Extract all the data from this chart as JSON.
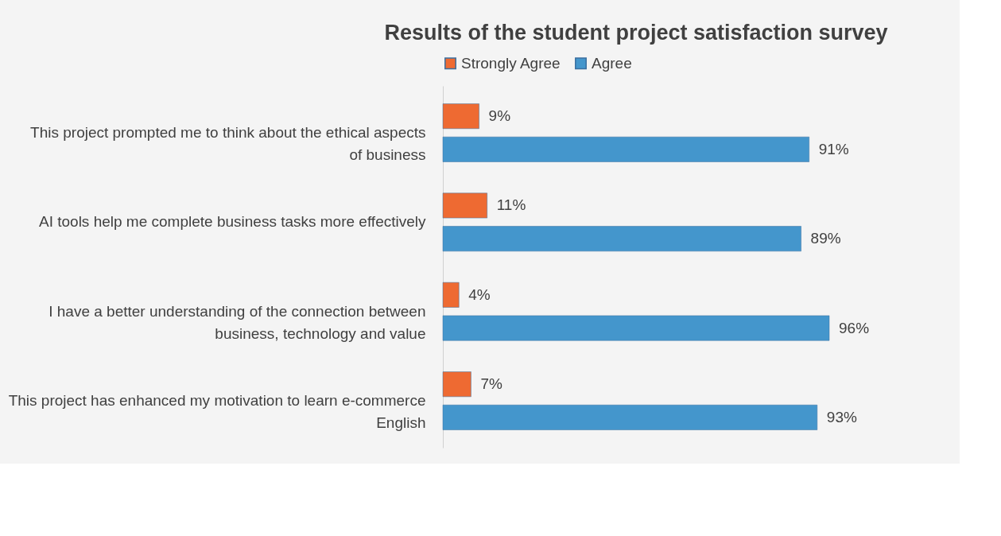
{
  "chart_data": {
    "type": "bar",
    "orientation": "horizontal",
    "title": "Results of the student project satisfaction survey",
    "categories": [
      "This project prompted me to think about the ethical aspects of business",
      "AI tools help me complete business tasks more effectively",
      "I have a better understanding of the connection between business, technology and value",
      "This project has enhanced my motivation to learn e-commerce English"
    ],
    "series": [
      {
        "name": "Strongly Agree",
        "color": "#ee6a32",
        "values": [
          9,
          11,
          4,
          7
        ],
        "value_labels": [
          "9%",
          "11%",
          "4%",
          "7%"
        ]
      },
      {
        "name": "Agree",
        "color": "#4496cc",
        "values": [
          91,
          89,
          96,
          93
        ],
        "value_labels": [
          "91%",
          "89%",
          "96%",
          "93%"
        ]
      }
    ],
    "legend": "top"
  }
}
